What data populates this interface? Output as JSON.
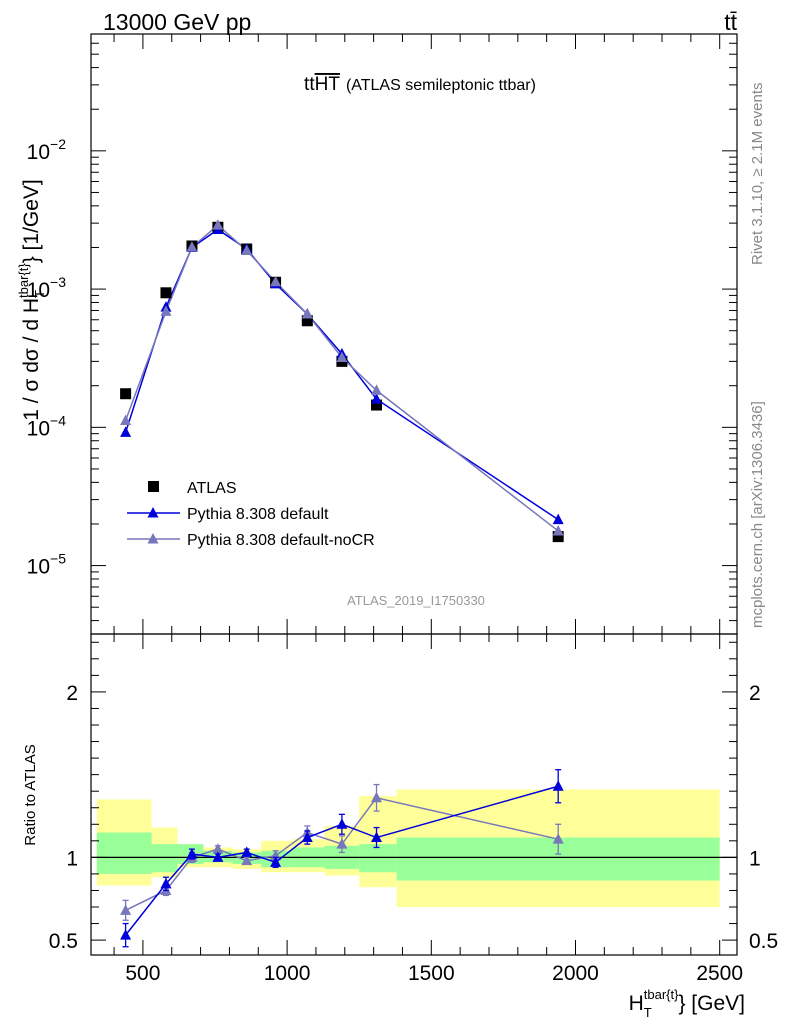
{
  "header": {
    "left": "13000 GeV pp",
    "right": "tt̄"
  },
  "side_labels": {
    "rivet": "Rivet 3.1.10, ≥ 2.1M events",
    "mcplots": "mcplots.cern.ch [arXiv:1306.3436]"
  },
  "chart_data": [
    {
      "type": "scatter",
      "title": "tt̅H̅T̅ (ATLAS semileptonic ttbar)",
      "title_main": "tt",
      "title_overline": "HT",
      "title_rest": "(ATLAS semileptonic ttbar)",
      "ylabel": "1 / σ dσ / d H_T^{tbar{t}} [1/GeV]",
      "xlabel": "H_T^{tbar{t}} [GeV]",
      "yscale": "log",
      "ylim": [
        3.2e-06,
        0.07
      ],
      "xlim": [
        320,
        2560
      ],
      "y_ticks": [
        "10^-5",
        "10^-4",
        "10^-3",
        "10^-2"
      ],
      "watermark": "ATLAS_2019_I1750330",
      "legend": {
        "position": "lower-left",
        "entries": [
          "ATLAS",
          "Pythia 8.308 default",
          "Pythia 8.308 default-noCR"
        ]
      },
      "series": [
        {
          "name": "ATLAS",
          "color": "#000000",
          "marker": "square",
          "x": [
            440,
            580,
            670,
            760,
            860,
            960,
            1070,
            1190,
            1310,
            1940
          ],
          "y": [
            0.000175,
            0.00094,
            0.00205,
            0.0028,
            0.00195,
            0.00112,
            0.00059,
            0.0003,
            0.000145,
            1.62e-05
          ]
        },
        {
          "name": "Pythia 8.308 default",
          "color": "#0000dd",
          "marker": "triangle",
          "x": [
            440,
            580,
            670,
            760,
            860,
            960,
            1070,
            1190,
            1310,
            1940
          ],
          "y": [
            9.2e-05,
            0.00074,
            0.002,
            0.0027,
            0.00195,
            0.00109,
            0.00066,
            0.00034,
            0.00016,
            2.15e-05
          ]
        },
        {
          "name": "Pythia 8.308 default-noCR",
          "color": "#7777bb",
          "marker": "triangle",
          "x": [
            440,
            580,
            670,
            760,
            860,
            960,
            1070,
            1190,
            1310,
            1940
          ],
          "y": [
            0.000112,
            0.00069,
            0.00201,
            0.0029,
            0.0019,
            0.00113,
            0.00066,
            0.00032,
            0.000185,
            1.78e-05
          ]
        }
      ]
    },
    {
      "type": "line",
      "ylabel": "Ratio to ATLAS",
      "ylim": [
        0.41,
        2.35
      ],
      "xlim": [
        320,
        2560
      ],
      "y_ticks": [
        "0.5",
        "1",
        "2"
      ],
      "x_ticks": [
        "500",
        "1000",
        "1500",
        "2000",
        "2500"
      ],
      "uncertainty_bands": {
        "edges": [
          340,
          530,
          620,
          710,
          810,
          910,
          1020,
          1130,
          1250,
          1380,
          2500
        ],
        "inner": [
          [
            0.9,
            1.15
          ],
          [
            0.91,
            1.08
          ],
          [
            0.96,
            1.08
          ],
          [
            0.97,
            1.04
          ],
          [
            0.96,
            1.03
          ],
          [
            0.94,
            1.04
          ],
          [
            0.94,
            1.06
          ],
          [
            0.93,
            1.07
          ],
          [
            0.91,
            1.08
          ],
          [
            0.86,
            1.12
          ]
        ],
        "outer": [
          [
            0.83,
            1.35
          ],
          [
            0.88,
            1.18
          ],
          [
            0.94,
            1.08
          ],
          [
            0.94,
            1.06
          ],
          [
            0.93,
            1.05
          ],
          [
            0.91,
            1.1
          ],
          [
            0.91,
            1.11
          ],
          [
            0.89,
            1.19
          ],
          [
            0.82,
            1.37
          ],
          [
            0.7,
            1.41
          ]
        ],
        "inner_color": "#99ff99",
        "outer_color": "#ffff99"
      },
      "series": [
        {
          "name": "Pythia 8.308 default",
          "color": "#0000dd",
          "marker": "triangle",
          "x": [
            440,
            580,
            670,
            760,
            860,
            960,
            1070,
            1190,
            1310,
            1940
          ],
          "y": [
            0.53,
            0.84,
            1.02,
            1.0,
            1.03,
            0.97,
            1.12,
            1.2,
            1.12,
            1.43
          ],
          "err": [
            0.07,
            0.04,
            0.03,
            0.02,
            0.02,
            0.03,
            0.04,
            0.06,
            0.06,
            0.1
          ]
        },
        {
          "name": "Pythia 8.308 default-noCR",
          "color": "#7777bb",
          "marker": "triangle",
          "x": [
            440,
            580,
            670,
            760,
            860,
            960,
            1070,
            1190,
            1310,
            1940
          ],
          "y": [
            0.68,
            0.8,
            1.0,
            1.05,
            0.98,
            1.01,
            1.15,
            1.08,
            1.36,
            1.11
          ],
          "err": [
            0.06,
            0.03,
            0.03,
            0.02,
            0.02,
            0.03,
            0.04,
            0.05,
            0.08,
            0.09
          ]
        }
      ]
    }
  ]
}
